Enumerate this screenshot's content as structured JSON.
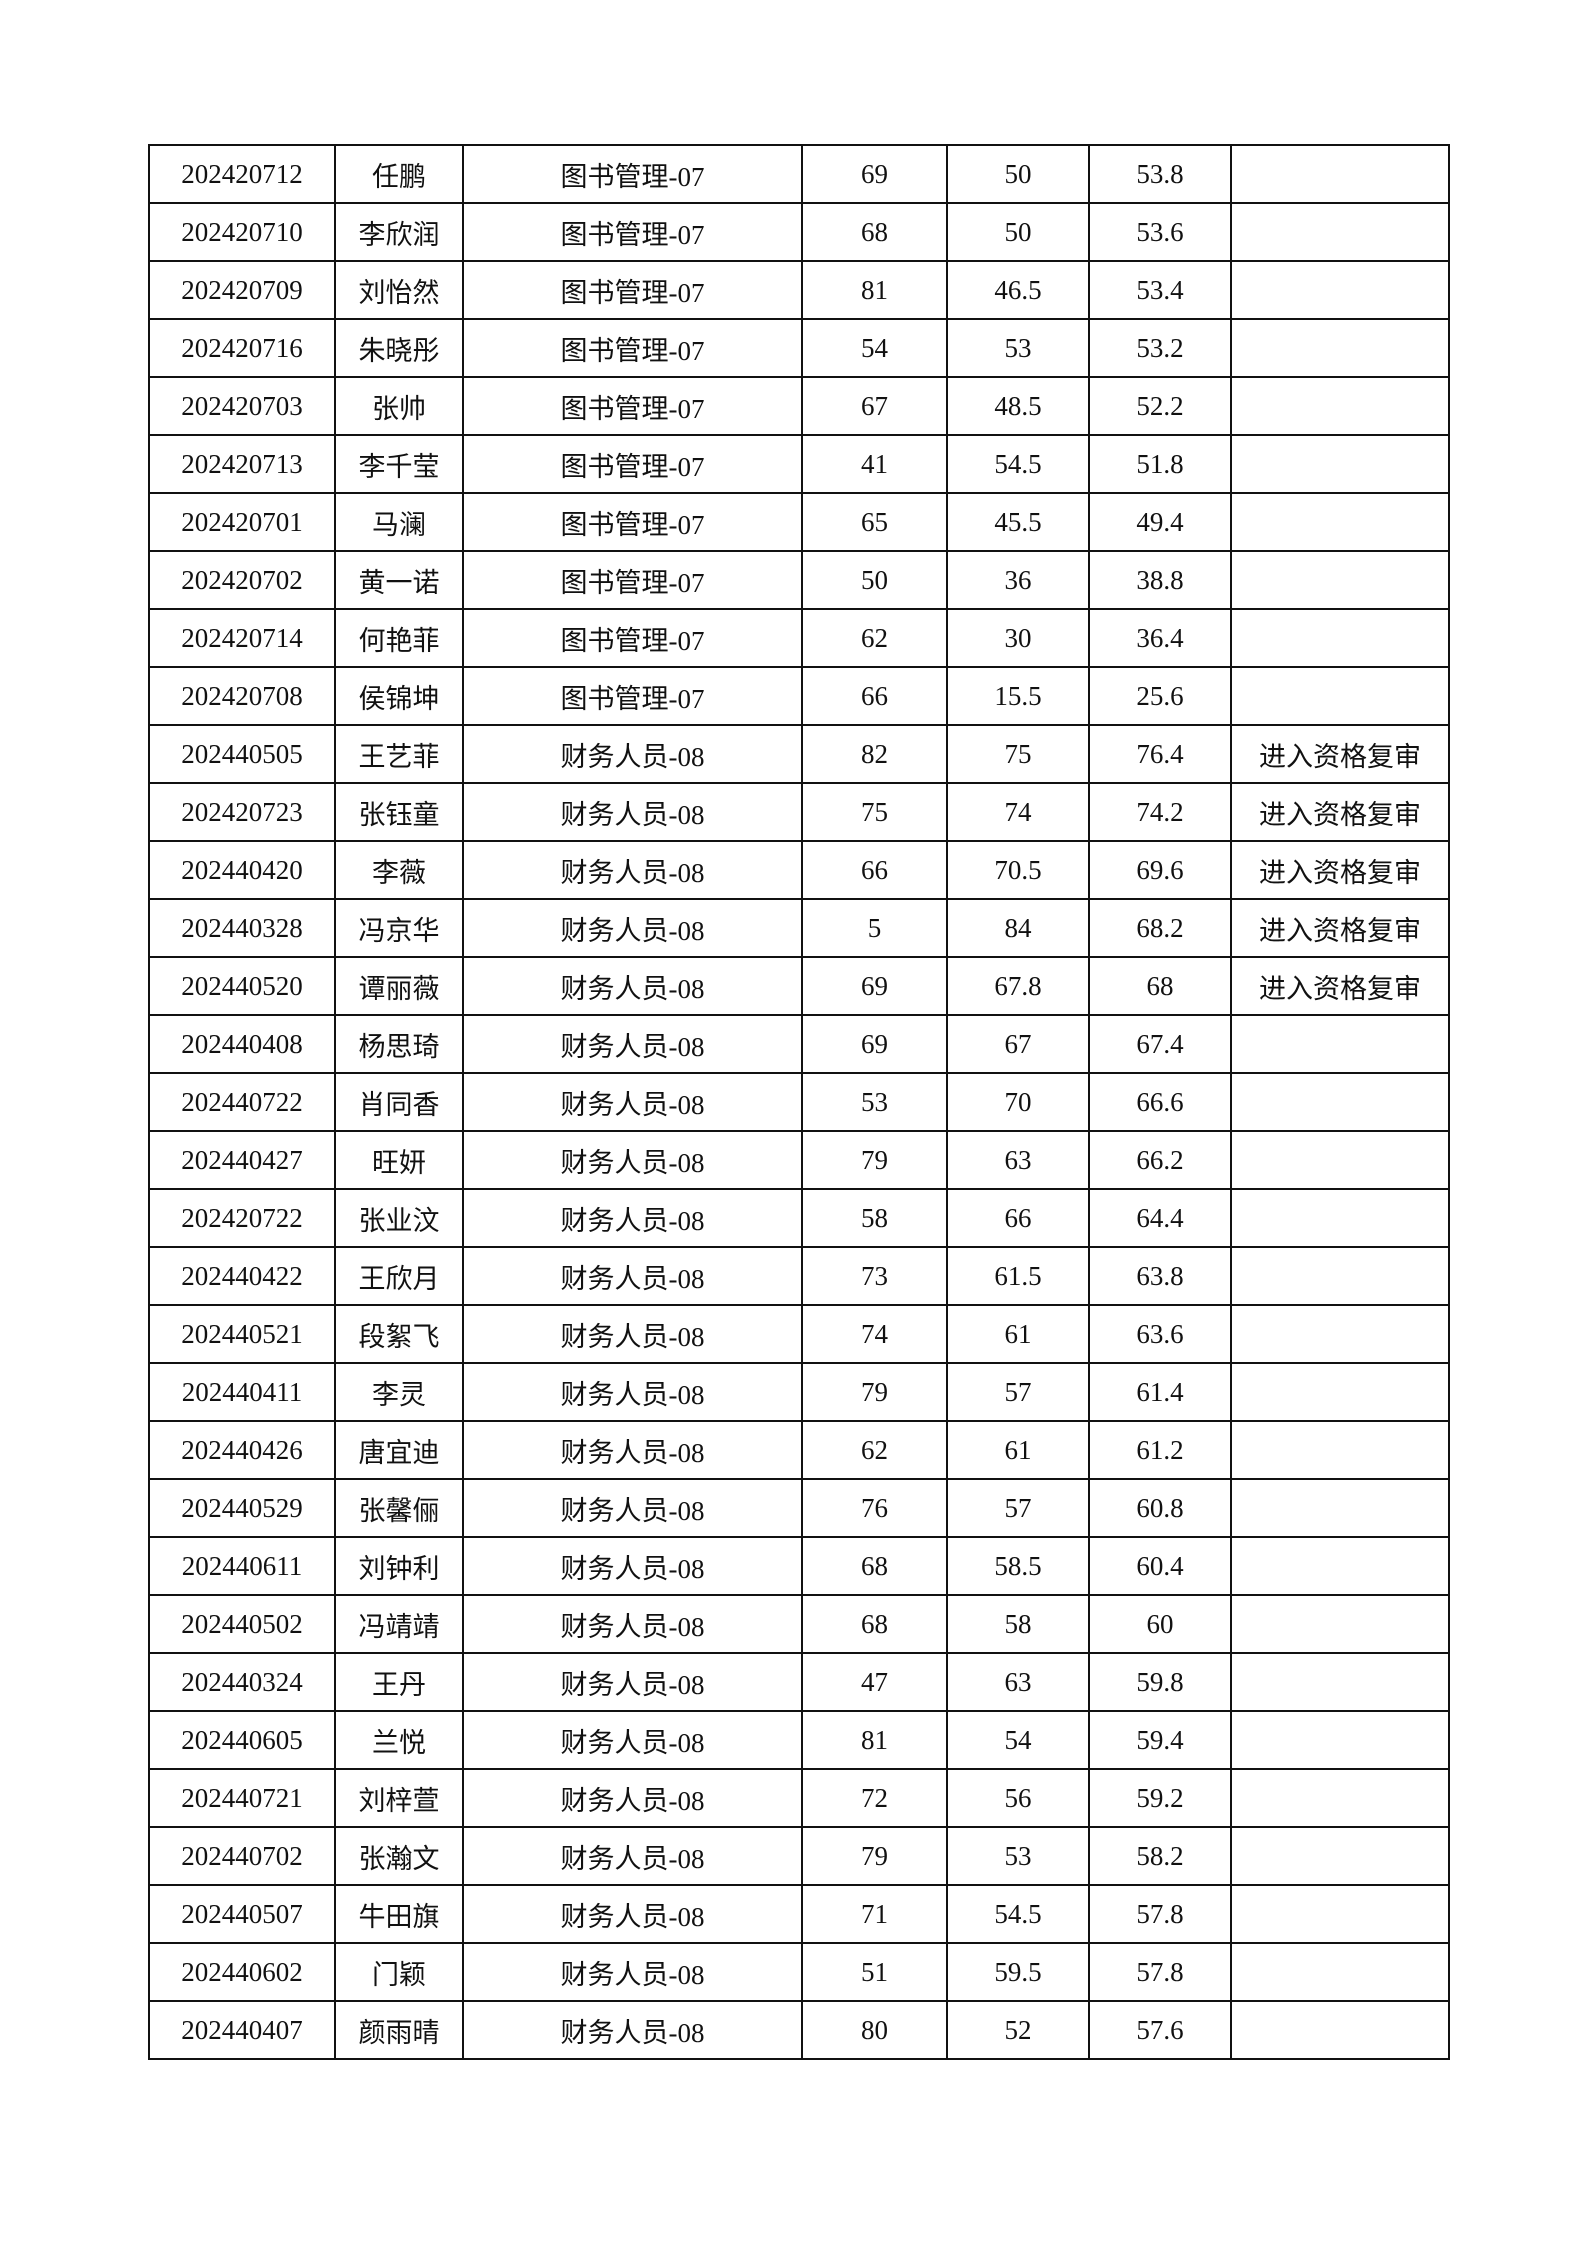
{
  "rows": [
    [
      "202420712",
      "任鹏",
      "图书管理-07",
      "69",
      "50",
      "53.8",
      ""
    ],
    [
      "202420710",
      "李欣润",
      "图书管理-07",
      "68",
      "50",
      "53.6",
      ""
    ],
    [
      "202420709",
      "刘怡然",
      "图书管理-07",
      "81",
      "46.5",
      "53.4",
      ""
    ],
    [
      "202420716",
      "朱晓彤",
      "图书管理-07",
      "54",
      "53",
      "53.2",
      ""
    ],
    [
      "202420703",
      "张帅",
      "图书管理-07",
      "67",
      "48.5",
      "52.2",
      ""
    ],
    [
      "202420713",
      "李千莹",
      "图书管理-07",
      "41",
      "54.5",
      "51.8",
      ""
    ],
    [
      "202420701",
      "马澜",
      "图书管理-07",
      "65",
      "45.5",
      "49.4",
      ""
    ],
    [
      "202420702",
      "黄一诺",
      "图书管理-07",
      "50",
      "36",
      "38.8",
      ""
    ],
    [
      "202420714",
      "何艳菲",
      "图书管理-07",
      "62",
      "30",
      "36.4",
      ""
    ],
    [
      "202420708",
      "侯锦坤",
      "图书管理-07",
      "66",
      "15.5",
      "25.6",
      ""
    ],
    [
      "202440505",
      "王艺菲",
      "财务人员-08",
      "82",
      "75",
      "76.4",
      "进入资格复审"
    ],
    [
      "202420723",
      "张钰童",
      "财务人员-08",
      "75",
      "74",
      "74.2",
      "进入资格复审"
    ],
    [
      "202440420",
      "李薇",
      "财务人员-08",
      "66",
      "70.5",
      "69.6",
      "进入资格复审"
    ],
    [
      "202440328",
      "冯京华",
      "财务人员-08",
      "5",
      "84",
      "68.2",
      "进入资格复审"
    ],
    [
      "202440520",
      "谭丽薇",
      "财务人员-08",
      "69",
      "67.8",
      "68",
      "进入资格复审"
    ],
    [
      "202440408",
      "杨思琦",
      "财务人员-08",
      "69",
      "67",
      "67.4",
      ""
    ],
    [
      "202440722",
      "肖同香",
      "财务人员-08",
      "53",
      "70",
      "66.6",
      ""
    ],
    [
      "202440427",
      "旺妍",
      "财务人员-08",
      "79",
      "63",
      "66.2",
      ""
    ],
    [
      "202420722",
      "张业汶",
      "财务人员-08",
      "58",
      "66",
      "64.4",
      ""
    ],
    [
      "202440422",
      "王欣月",
      "财务人员-08",
      "73",
      "61.5",
      "63.8",
      ""
    ],
    [
      "202440521",
      "段絮飞",
      "财务人员-08",
      "74",
      "61",
      "63.6",
      ""
    ],
    [
      "202440411",
      "李灵",
      "财务人员-08",
      "79",
      "57",
      "61.4",
      ""
    ],
    [
      "202440426",
      "唐宜迪",
      "财务人员-08",
      "62",
      "61",
      "61.2",
      ""
    ],
    [
      "202440529",
      "张馨俪",
      "财务人员-08",
      "76",
      "57",
      "60.8",
      ""
    ],
    [
      "202440611",
      "刘钟利",
      "财务人员-08",
      "68",
      "58.5",
      "60.4",
      ""
    ],
    [
      "202440502",
      "冯靖靖",
      "财务人员-08",
      "68",
      "58",
      "60",
      ""
    ],
    [
      "202440324",
      "王丹",
      "财务人员-08",
      "47",
      "63",
      "59.8",
      ""
    ],
    [
      "202440605",
      "兰悦",
      "财务人员-08",
      "81",
      "54",
      "59.4",
      ""
    ],
    [
      "202440721",
      "刘梓萱",
      "财务人员-08",
      "72",
      "56",
      "59.2",
      ""
    ],
    [
      "202440702",
      "张瀚文",
      "财务人员-08",
      "79",
      "53",
      "58.2",
      ""
    ],
    [
      "202440507",
      "牛田旗",
      "财务人员-08",
      "71",
      "54.5",
      "57.8",
      ""
    ],
    [
      "202440602",
      "门颖",
      "财务人员-08",
      "51",
      "59.5",
      "57.8",
      ""
    ],
    [
      "202440407",
      "颜雨晴",
      "财务人员-08",
      "80",
      "52",
      "57.6",
      ""
    ]
  ]
}
